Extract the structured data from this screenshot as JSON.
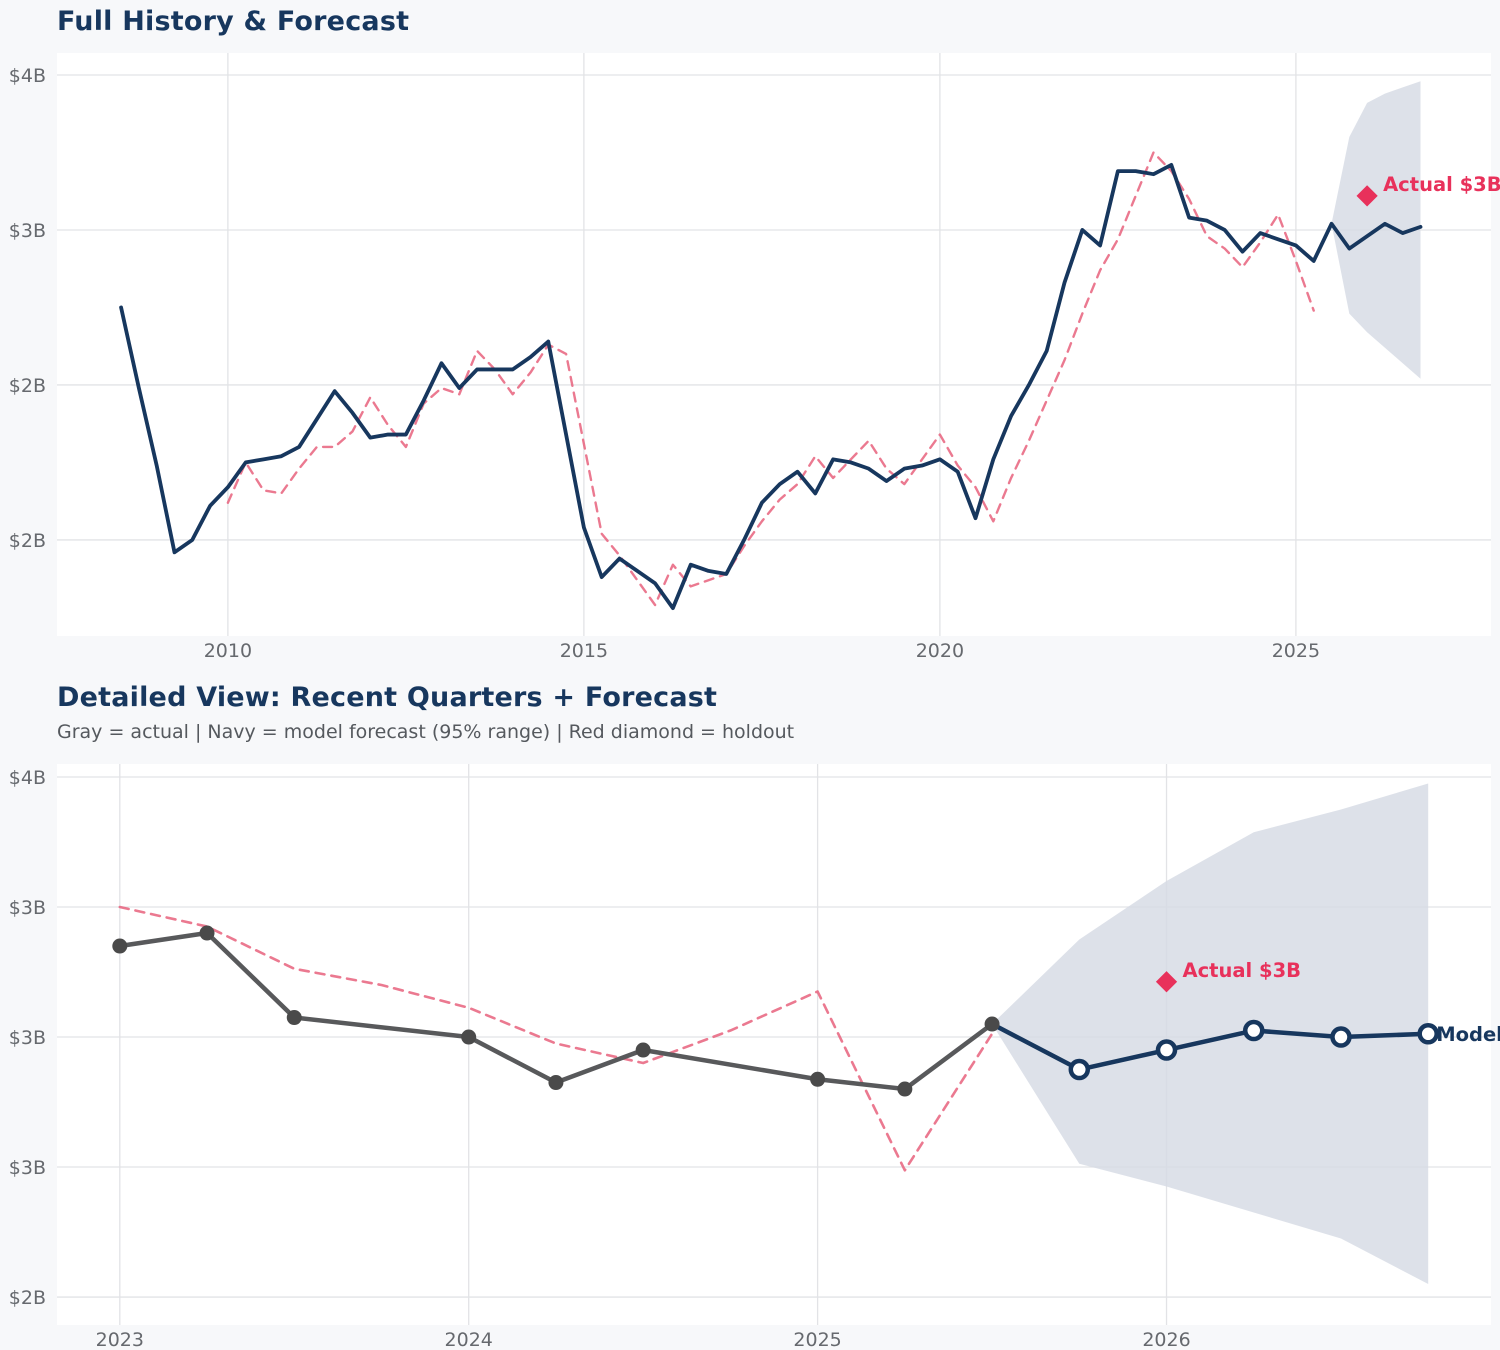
{
  "page": {
    "background": "#f7f8fa",
    "plot_background": "#ffffff",
    "grid_color": "#e2e3e6",
    "tick_color": "#66696e"
  },
  "chart_data": [
    {
      "type": "line",
      "title": "Full History & Forecast",
      "grid": true,
      "legend": "none",
      "x_axis": {
        "range": [
          2007.6,
          2027.74
        ],
        "ticks": [
          2010,
          2015,
          2020,
          2025
        ],
        "tick_labels": [
          "2010",
          "2015",
          "2020",
          "2025"
        ]
      },
      "y_axis": {
        "range": [
          1.69,
          3.571
        ],
        "ticks": [
          3.5,
          3.0,
          2.5,
          2.0
        ],
        "tick_labels": [
          "$4B",
          "$3B",
          "$2B",
          "$2B"
        ],
        "unit": "USD billions"
      },
      "band": {
        "name": "forecast-95-range",
        "color": "#D5DBE4",
        "x": [
          2025.5,
          2025.75,
          2026.0,
          2026.25,
          2026.5,
          2026.75
        ],
        "upper": [
          3.02,
          3.3,
          3.41,
          3.44,
          3.46,
          3.48
        ],
        "lower": [
          3.02,
          2.73,
          2.67,
          2.62,
          2.57,
          2.52
        ]
      },
      "series": [
        {
          "name": "model-fit",
          "color": "#E8617D",
          "style": "dashed",
          "width": 2.4,
          "opacity": 0.85,
          "x_start": 2010.0,
          "x_step": 0.25,
          "values": [
            2.12,
            2.25,
            2.16,
            2.15,
            2.23,
            2.3,
            2.3,
            2.35,
            2.46,
            2.37,
            2.3,
            2.44,
            2.49,
            2.47,
            2.61,
            2.55,
            2.47,
            2.54,
            2.63,
            2.6,
            2.31,
            2.02,
            1.95,
            1.87,
            1.79,
            1.92,
            1.85,
            1.87,
            1.89,
            1.98,
            2.06,
            2.13,
            2.18,
            2.27,
            2.2,
            2.26,
            2.32,
            2.23,
            2.18,
            2.26,
            2.34,
            2.24,
            2.17,
            2.06,
            2.2,
            2.32,
            2.45,
            2.58,
            2.73,
            2.87,
            2.97,
            3.11,
            3.25,
            3.19,
            3.1,
            2.98,
            2.94,
            2.88,
            2.96,
            3.05,
            2.9,
            2.74
          ]
        },
        {
          "name": "actual-and-forecast",
          "color": "#17375E",
          "style": "solid",
          "width": 3.8,
          "opacity": 1,
          "x_start": 2008.5,
          "x_step": 0.25,
          "values": [
            2.75,
            2.49,
            2.24,
            1.96,
            2.0,
            2.11,
            2.17,
            2.25,
            2.26,
            2.27,
            2.3,
            2.39,
            2.48,
            2.41,
            2.33,
            2.34,
            2.34,
            2.45,
            2.57,
            2.49,
            2.55,
            2.55,
            2.55,
            2.59,
            2.64,
            2.34,
            2.04,
            1.88,
            1.94,
            1.9,
            1.86,
            1.78,
            1.92,
            1.9,
            1.89,
            2.0,
            2.12,
            2.18,
            2.22,
            2.15,
            2.26,
            2.25,
            2.23,
            2.19,
            2.23,
            2.24,
            2.26,
            2.22,
            2.07,
            2.26,
            2.4,
            2.5,
            2.61,
            2.83,
            3.0,
            2.95,
            3.19,
            3.19,
            3.18,
            3.21,
            3.04,
            3.03,
            3.0,
            2.93,
            2.99,
            2.97,
            2.95,
            2.9,
            3.02,
            2.94,
            2.98,
            3.02,
            2.99,
            3.01
          ]
        }
      ],
      "annotations": [
        {
          "marker": "diamond",
          "x": 2026.0,
          "y": 3.11,
          "label": "Actual $3B",
          "color": "#E8315B"
        }
      ]
    },
    {
      "type": "line",
      "title": "Detailed View: Recent Quarters + Forecast",
      "subtitle": "Gray = actual  |  Navy = model forecast (95% range)  |  Red diamond = holdout",
      "grid": true,
      "legend": "none",
      "x_axis": {
        "range": [
          2022.82,
          2026.93
        ],
        "ticks": [
          2023,
          2024,
          2025,
          2026
        ],
        "tick_labels": [
          "2023",
          "2024",
          "2025",
          "2026"
        ]
      },
      "y_axis": {
        "range": [
          2.114,
          3.84
        ],
        "ticks": [
          3.8,
          3.4,
          3.0,
          2.6,
          2.2
        ],
        "tick_labels": [
          "$4B",
          "$3B",
          "$3B",
          "$3B",
          "$2B"
        ],
        "unit": "USD billions"
      },
      "band": {
        "name": "forecast-95-range",
        "color": "#D5DBE4",
        "x": [
          2025.5,
          2025.75,
          2026.0,
          2026.25,
          2026.5,
          2026.75
        ],
        "upper": [
          3.04,
          3.3,
          3.48,
          3.63,
          3.7,
          3.78
        ],
        "lower": [
          3.04,
          2.61,
          2.54,
          2.46,
          2.38,
          2.24
        ]
      },
      "series": [
        {
          "name": "model-fit",
          "color": "#E8617D",
          "style": "dashed",
          "width": 2.6,
          "opacity": 0.85,
          "x_start": 2023.0,
          "x_step": 0.25,
          "values": [
            3.4,
            3.34,
            3.21,
            3.16,
            3.09,
            2.98,
            2.92,
            3.02,
            3.14,
            2.59,
            3.01
          ]
        },
        {
          "name": "model-forecast",
          "color": "#17375E",
          "style": "solid",
          "width": 4.5,
          "opacity": 1,
          "marker": "circle",
          "marker_r": 8.5,
          "marker_skip": 1,
          "x": [
            2025.5,
            2025.75,
            2026.0,
            2026.25,
            2026.5,
            2026.75
          ],
          "values": [
            3.04,
            2.9,
            2.96,
            3.02,
            3.0,
            3.01
          ]
        },
        {
          "name": "actual",
          "color": "#58595b",
          "style": "solid",
          "width": 4.5,
          "opacity": 1,
          "marker": "dot",
          "marker_r": 7.5,
          "marker_color": "#4a4a4a",
          "x": [
            2023.0,
            2023.25,
            2023.5,
            2024.0,
            2024.25,
            2024.5,
            2025.0,
            2025.25,
            2025.5
          ],
          "values": [
            3.28,
            3.32,
            3.06,
            3.0,
            2.86,
            2.96,
            2.87,
            2.84,
            3.04
          ]
        }
      ],
      "annotations": [
        {
          "marker": "diamond",
          "x": 2026.0,
          "y": 3.17,
          "label": "Actual $3B",
          "color": "#E8315B"
        },
        {
          "marker": "none",
          "x": 2026.75,
          "y": 3.01,
          "label": "Model",
          "color": "#17375E"
        }
      ]
    }
  ]
}
